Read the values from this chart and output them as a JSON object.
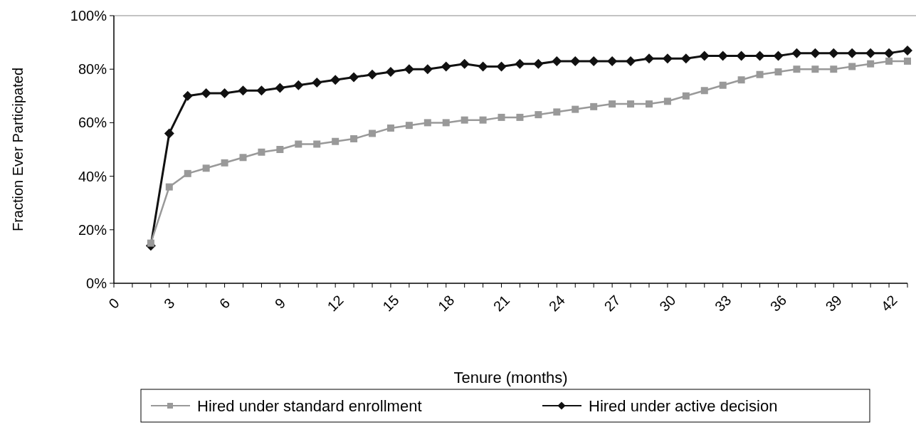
{
  "chart_data": {
    "type": "line",
    "xlabel": "Tenure (months)",
    "ylabel": "Fraction Ever Participated",
    "xlim": [
      0,
      43
    ],
    "ylim": [
      0,
      100
    ],
    "xticks": [
      0,
      {
        "value": 1,
        "label": null
      },
      {
        "value": 2,
        "label": null
      },
      3,
      {
        "value": 4,
        "label": null
      },
      {
        "value": 5,
        "label": null
      },
      6,
      {
        "value": 7,
        "label": null
      },
      {
        "value": 8,
        "label": null
      },
      9,
      {
        "value": 10,
        "label": null
      },
      {
        "value": 11,
        "label": null
      },
      12,
      {
        "value": 13,
        "label": null
      },
      {
        "value": 14,
        "label": null
      },
      15,
      {
        "value": 16,
        "label": null
      },
      {
        "value": 17,
        "label": null
      },
      18,
      {
        "value": 19,
        "label": null
      },
      {
        "value": 20,
        "label": null
      },
      21,
      {
        "value": 22,
        "label": null
      },
      {
        "value": 23,
        "label": null
      },
      24,
      {
        "value": 25,
        "label": null
      },
      {
        "value": 26,
        "label": null
      },
      27,
      {
        "value": 28,
        "label": null
      },
      {
        "value": 29,
        "label": null
      },
      30,
      {
        "value": 31,
        "label": null
      },
      {
        "value": 32,
        "label": null
      },
      33,
      {
        "value": 34,
        "label": null
      },
      {
        "value": 35,
        "label": null
      },
      36,
      {
        "value": 37,
        "label": null
      },
      {
        "value": 38,
        "label": null
      },
      39,
      {
        "value": 40,
        "label": null
      },
      {
        "value": 41,
        "label": null
      },
      42,
      {
        "value": 43,
        "label": null
      }
    ],
    "yticks": [
      {
        "value": 0,
        "label": "0%"
      },
      {
        "value": 20,
        "label": "20%"
      },
      {
        "value": 40,
        "label": "40%"
      },
      {
        "value": 60,
        "label": "60%"
      },
      {
        "value": 80,
        "label": "80%"
      },
      {
        "value": 100,
        "label": "100%"
      }
    ],
    "x": [
      2,
      3,
      4,
      5,
      6,
      7,
      8,
      9,
      10,
      11,
      12,
      13,
      14,
      15,
      16,
      17,
      18,
      19,
      20,
      21,
      22,
      23,
      24,
      25,
      26,
      27,
      28,
      29,
      30,
      31,
      32,
      33,
      34,
      35,
      36,
      37,
      38,
      39,
      40,
      41,
      42,
      43
    ],
    "legend": "bottom",
    "grid": false,
    "series": [
      {
        "name": "Hired under standard enrollment",
        "color": "#999999",
        "marker": "square",
        "values": [
          15,
          36,
          41,
          43,
          45,
          47,
          49,
          50,
          52,
          52,
          53,
          54,
          56,
          58,
          59,
          60,
          60,
          61,
          61,
          62,
          62,
          63,
          64,
          65,
          66,
          67,
          67,
          67,
          68,
          70,
          72,
          74,
          76,
          78,
          79,
          80,
          80,
          80,
          81,
          82,
          83,
          83
        ]
      },
      {
        "name": "Hired under active decision",
        "color": "#111111",
        "marker": "diamond",
        "values": [
          14,
          56,
          70,
          71,
          71,
          72,
          72,
          73,
          74,
          75,
          76,
          77,
          78,
          79,
          80,
          80,
          81,
          82,
          81,
          81,
          82,
          82,
          83,
          83,
          83,
          83,
          83,
          84,
          84,
          84,
          85,
          85,
          85,
          85,
          85,
          86,
          86,
          86,
          86,
          86,
          86,
          87
        ]
      }
    ]
  }
}
